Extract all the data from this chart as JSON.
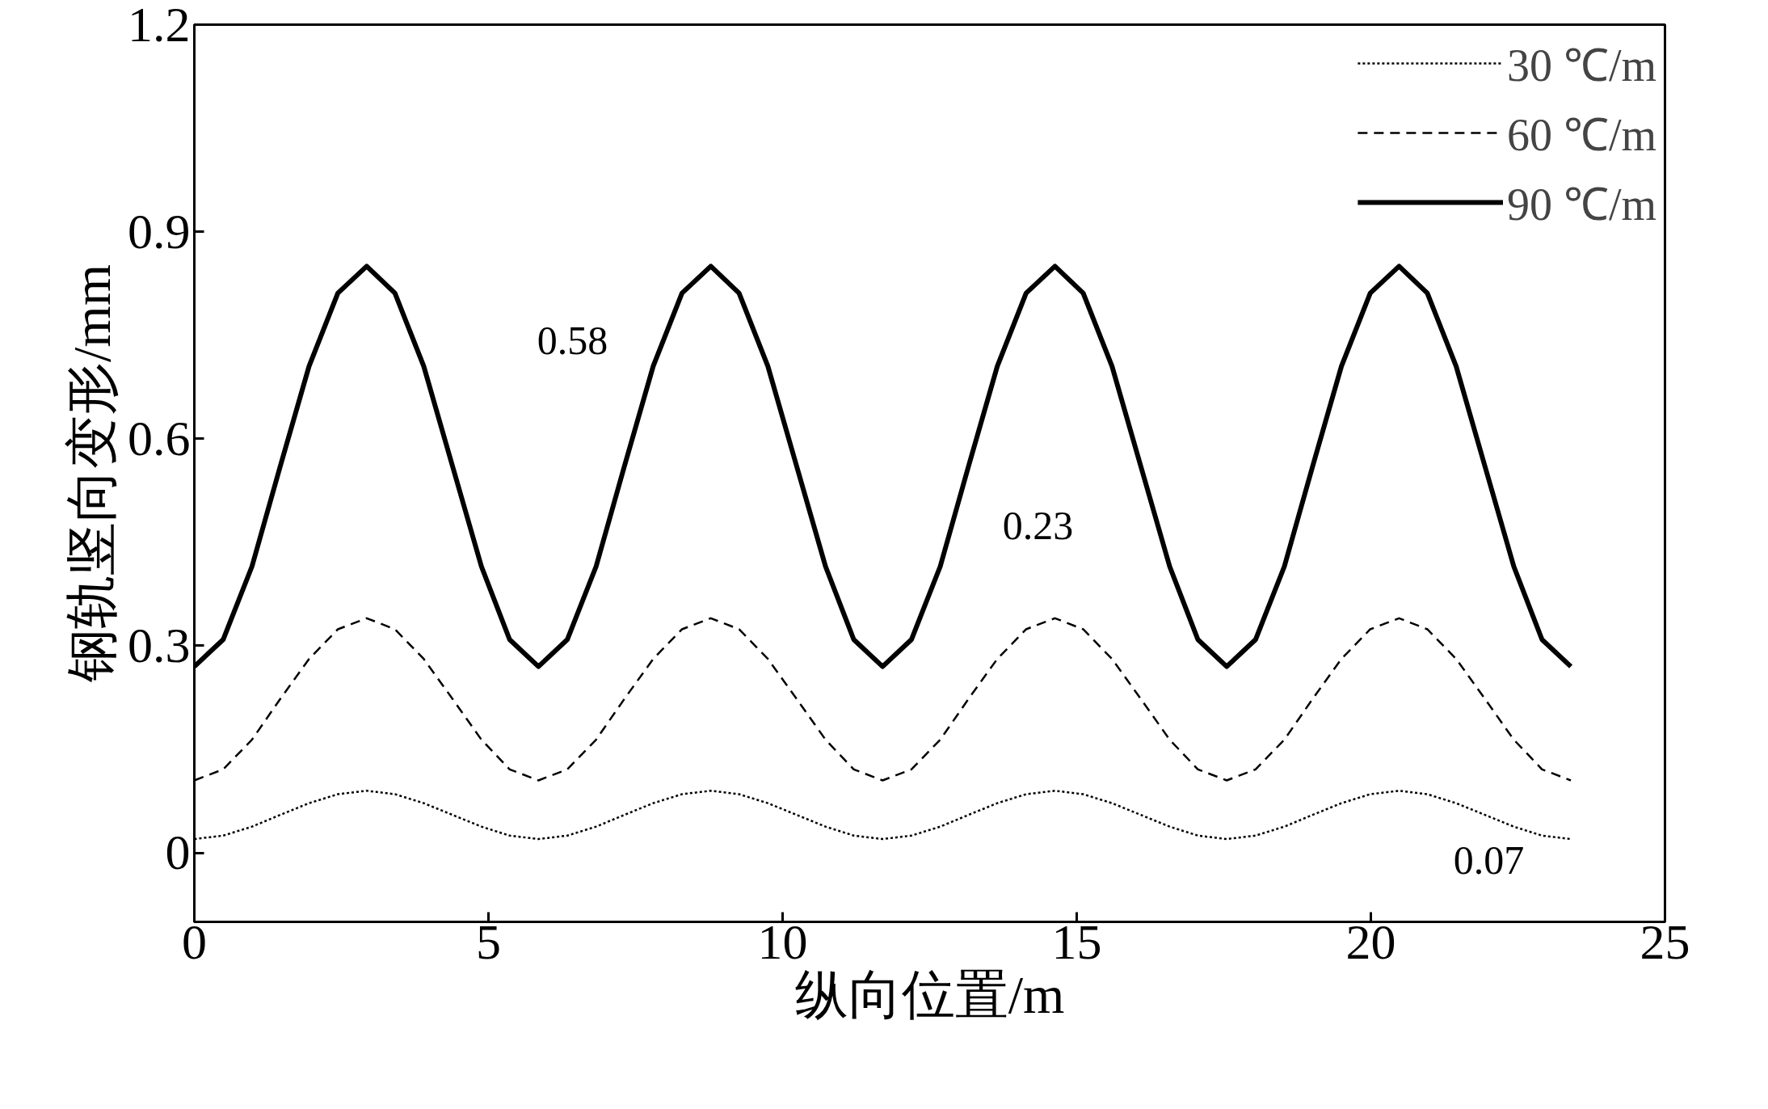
{
  "chart_data": {
    "type": "line",
    "xlabel": "纵向位置/m",
    "ylabel": "钢轨竖向变形/mm",
    "x": [
      0,
      0.49,
      0.98,
      1.46,
      1.95,
      2.44,
      2.93,
      3.41,
      3.9,
      4.39,
      4.88,
      5.36,
      5.85,
      6.34,
      6.83,
      7.31,
      7.8,
      8.29,
      8.78,
      9.26,
      9.75,
      10.24,
      10.73,
      11.21,
      11.7,
      12.19,
      12.68,
      13.16,
      13.65,
      14.14,
      14.63,
      15.11,
      15.6,
      16.09,
      16.58,
      17.06,
      17.55,
      18.04,
      18.53,
      19.01,
      19.5,
      19.99,
      20.48,
      20.96,
      21.45,
      21.94,
      22.43,
      22.91,
      23.4
    ],
    "series": [
      {
        "name": "30 ℃/m",
        "color": "#000000",
        "line_style": "dotted",
        "values": [
          0.02,
          0.025,
          0.038,
          0.055,
          0.072,
          0.085,
          0.09,
          0.085,
          0.072,
          0.055,
          0.038,
          0.025,
          0.02,
          0.025,
          0.038,
          0.055,
          0.072,
          0.085,
          0.09,
          0.085,
          0.072,
          0.055,
          0.038,
          0.025,
          0.02,
          0.025,
          0.038,
          0.055,
          0.072,
          0.085,
          0.09,
          0.085,
          0.072,
          0.055,
          0.038,
          0.025,
          0.02,
          0.025,
          0.038,
          0.055,
          0.072,
          0.085,
          0.09,
          0.085,
          0.072,
          0.055,
          0.038,
          0.025,
          0.02
        ]
      },
      {
        "name": "60 ℃/m",
        "color": "#000000",
        "line_style": "dashed",
        "values": [
          0.105,
          0.121,
          0.164,
          0.223,
          0.281,
          0.324,
          0.34,
          0.324,
          0.281,
          0.223,
          0.164,
          0.121,
          0.105,
          0.121,
          0.164,
          0.223,
          0.281,
          0.324,
          0.34,
          0.324,
          0.281,
          0.223,
          0.164,
          0.121,
          0.105,
          0.121,
          0.164,
          0.223,
          0.281,
          0.324,
          0.34,
          0.324,
          0.281,
          0.223,
          0.164,
          0.121,
          0.105,
          0.121,
          0.164,
          0.223,
          0.281,
          0.324,
          0.34,
          0.324,
          0.281,
          0.223,
          0.164,
          0.121,
          0.105
        ]
      },
      {
        "name": "90 ℃/m",
        "color": "#000000",
        "line_style": "solid",
        "values": [
          0.27,
          0.309,
          0.415,
          0.56,
          0.705,
          0.811,
          0.85,
          0.811,
          0.705,
          0.56,
          0.415,
          0.309,
          0.27,
          0.309,
          0.415,
          0.56,
          0.705,
          0.811,
          0.85,
          0.811,
          0.705,
          0.56,
          0.415,
          0.309,
          0.27,
          0.309,
          0.415,
          0.56,
          0.705,
          0.811,
          0.85,
          0.811,
          0.705,
          0.56,
          0.415,
          0.309,
          0.27,
          0.309,
          0.415,
          0.56,
          0.705,
          0.811,
          0.85,
          0.811,
          0.705,
          0.56,
          0.415,
          0.309,
          0.27
        ]
      }
    ],
    "annotations": [
      "0.58",
      "0.23",
      "0.07"
    ],
    "xlim": [
      0,
      25
    ],
    "ylim": [
      -0.1,
      1.2
    ],
    "xticks": [
      0,
      5,
      10,
      15,
      20,
      25
    ],
    "yticks": [
      0,
      0.3,
      0.6,
      0.9,
      1.2
    ],
    "grid": false,
    "legend": "top right"
  }
}
